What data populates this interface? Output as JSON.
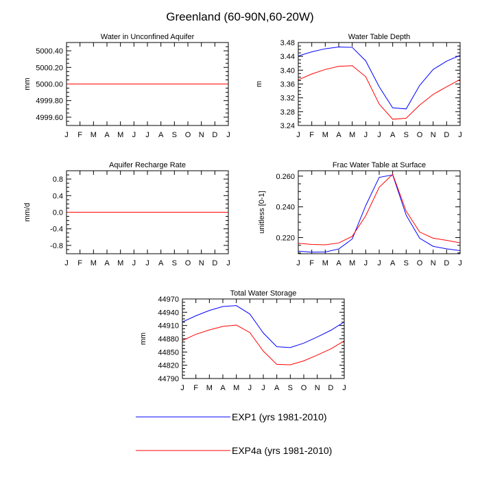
{
  "figure": {
    "title": "Greenland (60-90N,60-20W)"
  },
  "colors": {
    "exp1": "#0000ff",
    "exp4a": "#ff0000"
  },
  "legend": {
    "entries": [
      {
        "label": "EXP1 (yrs 1981-2010)",
        "color": "#0000ff"
      },
      {
        "label": "EXP4a (yrs 1981-2010)",
        "color": "#ff0000"
      }
    ]
  },
  "chart_data": [
    {
      "type": "line",
      "title": "Water in Unconfined Aquifer",
      "ylabel": "mm",
      "xlabel": "",
      "categories": [
        "J",
        "F",
        "M",
        "A",
        "M",
        "J",
        "J",
        "A",
        "S",
        "O",
        "N",
        "D",
        "J"
      ],
      "ylim": [
        4999.5,
        5000.5
      ],
      "yticks": [
        4999.6,
        4999.8,
        5000.0,
        5000.2,
        5000.4
      ],
      "ytick_labels": [
        "4999.60",
        "4999.80",
        "5000.00",
        "5000.20",
        "5000.40"
      ],
      "series": [
        {
          "name": "EXP1 (yrs 1981-2010)",
          "values": [
            5000,
            5000,
            5000,
            5000,
            5000,
            5000,
            5000,
            5000,
            5000,
            5000,
            5000,
            5000,
            5000
          ]
        },
        {
          "name": "EXP4a (yrs 1981-2010)",
          "values": [
            5000,
            5000,
            5000,
            5000,
            5000,
            5000,
            5000,
            5000,
            5000,
            5000,
            5000,
            5000,
            5000
          ]
        }
      ]
    },
    {
      "type": "line",
      "title": "Water Table Depth",
      "ylabel": "m",
      "xlabel": "",
      "categories": [
        "J",
        "F",
        "M",
        "A",
        "M",
        "J",
        "J",
        "A",
        "S",
        "O",
        "N",
        "D",
        "J"
      ],
      "ylim": [
        3.24,
        3.48
      ],
      "yticks": [
        3.24,
        3.28,
        3.32,
        3.36,
        3.4,
        3.44,
        3.48
      ],
      "ytick_labels": [
        "3.24",
        "3.28",
        "3.32",
        "3.36",
        "3.40",
        "3.44",
        "3.48"
      ],
      "series": [
        {
          "name": "EXP1 (yrs 1981-2010)",
          "values": [
            3.441,
            3.453,
            3.462,
            3.467,
            3.466,
            3.427,
            3.352,
            3.291,
            3.288,
            3.356,
            3.402,
            3.426,
            3.443
          ]
        },
        {
          "name": "EXP4a (yrs 1981-2010)",
          "values": [
            3.372,
            3.389,
            3.402,
            3.411,
            3.413,
            3.381,
            3.302,
            3.258,
            3.261,
            3.299,
            3.33,
            3.352,
            3.373
          ]
        }
      ]
    },
    {
      "type": "line",
      "title": "Aquifer Recharge Rate",
      "ylabel": "mm/d",
      "xlabel": "",
      "categories": [
        "J",
        "F",
        "M",
        "A",
        "M",
        "J",
        "J",
        "A",
        "S",
        "O",
        "N",
        "D",
        "J"
      ],
      "ylim": [
        -1.0,
        1.0
      ],
      "yticks": [
        -0.8,
        -0.4,
        0.0,
        0.4,
        0.8
      ],
      "ytick_labels": [
        "-0.8",
        "-0.4",
        "0.0",
        "0.4",
        "0.8"
      ],
      "series": [
        {
          "name": "EXP1 (yrs 1981-2010)",
          "values": [
            0,
            0,
            0,
            0,
            0,
            0,
            0,
            0,
            0,
            0,
            0,
            0,
            0
          ]
        },
        {
          "name": "EXP4a (yrs 1981-2010)",
          "values": [
            0,
            0,
            0,
            0,
            0,
            0,
            0,
            0,
            0,
            0,
            0,
            0,
            0
          ]
        }
      ]
    },
    {
      "type": "line",
      "title": "Frac Water Table at Surface",
      "ylabel": "unitless [0-1]",
      "xlabel": "",
      "categories": [
        "J",
        "F",
        "M",
        "A",
        "M",
        "J",
        "J",
        "A",
        "S",
        "O",
        "N",
        "D",
        "J"
      ],
      "ylim": [
        0.2095,
        0.2635
      ],
      "yticks": [
        0.22,
        0.24,
        0.26
      ],
      "ytick_labels": [
        "0.220",
        "0.240",
        "0.260"
      ],
      "series": [
        {
          "name": "EXP1 (yrs 1981-2010)",
          "values": [
            0.2112,
            0.2105,
            0.2106,
            0.2126,
            0.2191,
            0.2408,
            0.2592,
            0.2608,
            0.2346,
            0.2196,
            0.2143,
            0.2127,
            0.2115
          ]
        },
        {
          "name": "EXP4a (yrs 1981-2010)",
          "values": [
            0.2163,
            0.2155,
            0.2153,
            0.2165,
            0.2208,
            0.2342,
            0.2527,
            0.2612,
            0.2372,
            0.2236,
            0.2196,
            0.2182,
            0.2166
          ]
        }
      ]
    },
    {
      "type": "line",
      "title": "Total Water Storage",
      "ylabel": "mm",
      "xlabel": "",
      "categories": [
        "J",
        "F",
        "M",
        "A",
        "M",
        "J",
        "J",
        "A",
        "S",
        "O",
        "N",
        "D",
        "J"
      ],
      "ylim": [
        44790,
        44970
      ],
      "yticks": [
        44790,
        44820,
        44850,
        44880,
        44910,
        44940,
        44970
      ],
      "ytick_labels": [
        "44790",
        "44820",
        "44850",
        "44880",
        "44910",
        "44940",
        "44970"
      ],
      "series": [
        {
          "name": "EXP1 (yrs 1981-2010)",
          "values": [
            44918,
            44932,
            44944,
            44953,
            44955,
            44936,
            44893,
            44862,
            44860,
            44870,
            44884,
            44899,
            44918
          ]
        },
        {
          "name": "EXP4a (yrs 1981-2010)",
          "values": [
            44876,
            44890,
            44900,
            44908,
            44911,
            44894,
            44852,
            44822,
            44821,
            44830,
            44843,
            44857,
            44875
          ]
        }
      ]
    }
  ]
}
